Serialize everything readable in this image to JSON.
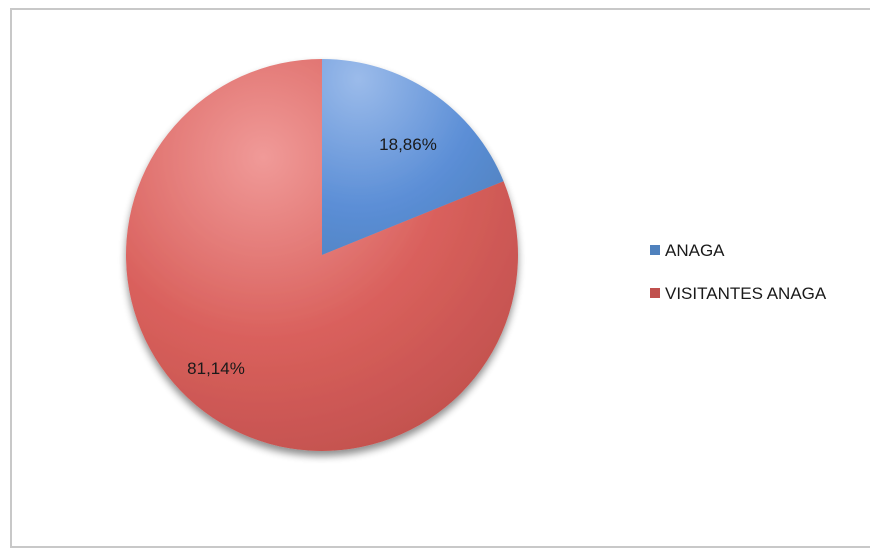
{
  "chart_data": {
    "type": "pie",
    "categories": [
      "ANAGA",
      "VISITANTES ANAGA"
    ],
    "values": [
      18.86,
      81.14
    ],
    "data_labels": [
      "18,86%",
      "81,14%"
    ],
    "colors": [
      "#4f81bd",
      "#c0504d"
    ],
    "legend_position": "right",
    "title": ""
  }
}
